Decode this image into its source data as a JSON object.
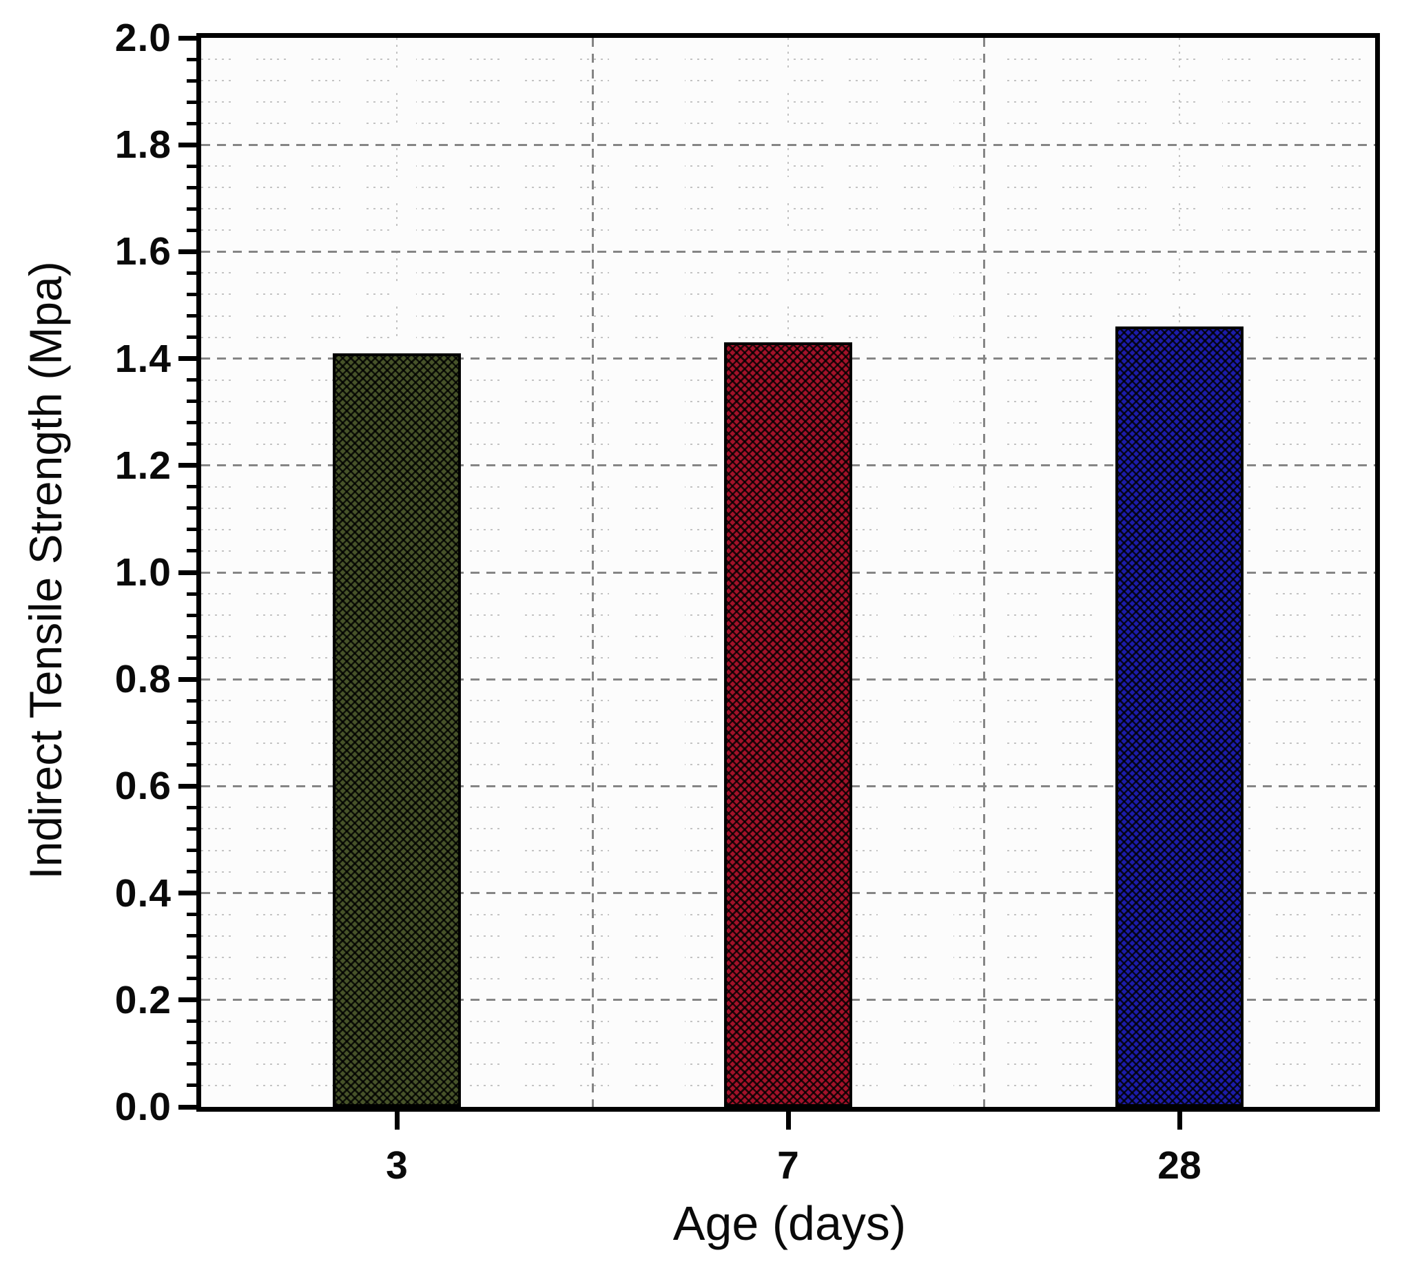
{
  "figure": {
    "background": "#ffffff",
    "plot_background": "#fcfcfc",
    "axis_color": "#000000"
  },
  "chart_data": {
    "type": "bar",
    "title": "",
    "xlabel": "Age (days)",
    "ylabel": "Indirect Tensile Strength (Mpa)",
    "categories": [
      "3",
      "7",
      "28"
    ],
    "values": [
      1.41,
      1.43,
      1.46
    ],
    "ylim": [
      0.0,
      2.0
    ],
    "ytick_step": 0.2,
    "yminor_step": 0.04,
    "ytick_labels": [
      "0.0",
      "0.2",
      "0.4",
      "0.6",
      "0.8",
      "1.0",
      "1.2",
      "1.4",
      "1.6",
      "1.8",
      "2.0"
    ],
    "legend": "none",
    "grid": {
      "horizontal_major_style": "dashed",
      "horizontal_minor_style": "dotted",
      "vertical_major_style": "dashed",
      "vertical_minor_style": "dotted",
      "major_color": "#858585",
      "minor_color": "#c3c3c3"
    },
    "bars": [
      {
        "category": "3",
        "value": 1.41,
        "fill": "#475329",
        "pattern": "black-diagonal-crosshatch"
      },
      {
        "category": "7",
        "value": 1.43,
        "fill": "#a31229",
        "pattern": "black-diagonal-crosshatch"
      },
      {
        "category": "28",
        "value": 1.46,
        "fill": "#1c1caa",
        "pattern": "black-diagonal-crosshatch"
      }
    ]
  }
}
